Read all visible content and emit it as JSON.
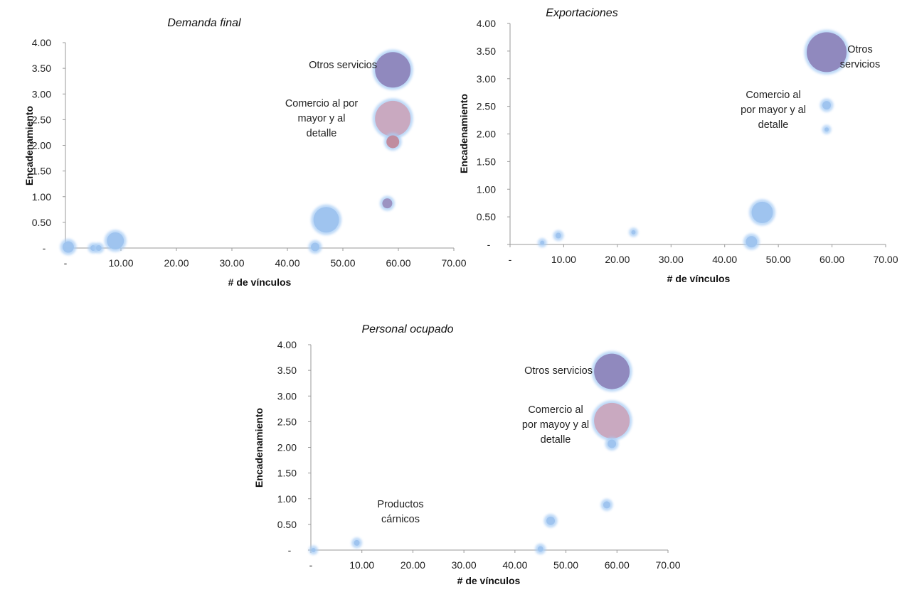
{
  "chart_data": [
    {
      "type": "scatter",
      "title": "Demanda final",
      "xlabel": "# de vínculos",
      "ylabel": "Encadenamiento",
      "xlim": [
        0,
        70
      ],
      "ylim": [
        0,
        4
      ],
      "x_ticks": [
        "-",
        "10.00",
        "20.00",
        "30.00",
        "40.00",
        "50.00",
        "60.00",
        "70.00"
      ],
      "y_ticks": [
        "-",
        "0.50",
        "1.00",
        "1.50",
        "2.00",
        "2.50",
        "3.00",
        "3.50",
        "4.00"
      ],
      "grid": false,
      "points": [
        {
          "x": 0.5,
          "y": 0.02,
          "size": 10,
          "color": "#9dc3ee"
        },
        {
          "x": 5.0,
          "y": 0.0,
          "size": 6,
          "color": "#9dc3ee"
        },
        {
          "x": 6.0,
          "y": 0.0,
          "size": 6,
          "color": "#9dc3ee"
        },
        {
          "x": 9.0,
          "y": 0.14,
          "size": 14,
          "color": "#9dc3ee"
        },
        {
          "x": 45.0,
          "y": 0.02,
          "size": 8,
          "color": "#9dc3ee"
        },
        {
          "x": 47.0,
          "y": 0.55,
          "size": 20,
          "color": "#9dc3ee"
        },
        {
          "x": 58.0,
          "y": 0.87,
          "size": 9,
          "color": "#9a8fbf"
        },
        {
          "x": 59.0,
          "y": 2.07,
          "size": 11,
          "color": "#c0889a"
        },
        {
          "x": 59.0,
          "y": 2.52,
          "size": 27,
          "color": "#c9a6bd"
        },
        {
          "x": 59.0,
          "y": 3.47,
          "size": 27,
          "color": "#8d85ba"
        }
      ],
      "annotations": [
        {
          "lines": [
            "Otros servicios"
          ],
          "x": 58.8,
          "y": 3.47
        },
        {
          "lines": [
            "Comercio al por",
            "mayor y al",
            "detalle"
          ],
          "x": 59.0,
          "y": 2.52
        }
      ]
    },
    {
      "type": "scatter",
      "title": "Exportaciones",
      "xlabel": "# de vínculos",
      "ylabel": "Encadenamiento",
      "xlim": [
        0,
        70
      ],
      "ylim": [
        0,
        4
      ],
      "x_ticks": [
        "-",
        "10.00",
        "20.00",
        "30.00",
        "40.00",
        "50.00",
        "60.00",
        "70.00"
      ],
      "y_ticks": [
        "-",
        "0.50",
        "1.00",
        "1.50",
        "2.00",
        "2.50",
        "3.00",
        "3.50",
        "4.00"
      ],
      "grid": false,
      "points": [
        {
          "x": 6.0,
          "y": 0.03,
          "size": 5,
          "color": "#9dc3ee"
        },
        {
          "x": 9.0,
          "y": 0.16,
          "size": 6,
          "color": "#9dc3ee"
        },
        {
          "x": 23.0,
          "y": 0.22,
          "size": 5,
          "color": "#9dc3ee"
        },
        {
          "x": 45.0,
          "y": 0.05,
          "size": 10,
          "color": "#9dc3ee"
        },
        {
          "x": 47.0,
          "y": 0.58,
          "size": 17,
          "color": "#9dc3ee"
        },
        {
          "x": 59.0,
          "y": 2.08,
          "size": 5,
          "color": "#9dc3ee"
        },
        {
          "x": 59.0,
          "y": 2.52,
          "size": 8,
          "color": "#9dc3ee"
        },
        {
          "x": 59.0,
          "y": 3.48,
          "size": 30,
          "color": "#8d85ba"
        }
      ],
      "annotations": [
        {
          "lines": [
            "Otros",
            "servicios"
          ],
          "x": 59.0,
          "y": 3.48
        },
        {
          "lines": [
            "Comercio al",
            "por mayor y al",
            "detalle"
          ],
          "x": 59.0,
          "y": 2.52
        }
      ]
    },
    {
      "type": "scatter",
      "title": "Personal ocupado",
      "xlabel": "# de vínculos",
      "ylabel": "Encadenamiento",
      "xlim": [
        0,
        70
      ],
      "ylim": [
        0,
        4
      ],
      "x_ticks": [
        "-",
        "10.00",
        "20.00",
        "30.00",
        "40.00",
        "50.00",
        "60.00",
        "70.00"
      ],
      "y_ticks": [
        "-",
        "0.50",
        "1.00",
        "1.50",
        "2.00",
        "2.50",
        "3.00",
        "3.50",
        "4.00"
      ],
      "grid": false,
      "points": [
        {
          "x": 0.5,
          "y": 0.0,
          "size": 5,
          "color": "#9dc3ee"
        },
        {
          "x": 9.0,
          "y": 0.14,
          "size": 6,
          "color": "#9dc3ee"
        },
        {
          "x": 45.0,
          "y": 0.02,
          "size": 6,
          "color": "#9dc3ee"
        },
        {
          "x": 47.0,
          "y": 0.57,
          "size": 8,
          "color": "#9dc3ee"
        },
        {
          "x": 58.0,
          "y": 0.88,
          "size": 7,
          "color": "#9dc3ee"
        },
        {
          "x": 59.0,
          "y": 2.07,
          "size": 8,
          "color": "#9dc3ee"
        },
        {
          "x": 59.0,
          "y": 2.52,
          "size": 27,
          "color": "#c9a6bd"
        },
        {
          "x": 59.0,
          "y": 3.48,
          "size": 27,
          "color": "#8d85ba"
        }
      ],
      "annotations": [
        {
          "lines": [
            "Otros servicios"
          ],
          "x": 59.0,
          "y": 3.48
        },
        {
          "lines": [
            "Comercio al",
            "por mayoy y al",
            "detalle"
          ],
          "x": 59.0,
          "y": 2.52
        },
        {
          "lines": [
            "Productos",
            "cárnicos"
          ],
          "x": 9.0,
          "y": 0.14
        }
      ]
    }
  ]
}
